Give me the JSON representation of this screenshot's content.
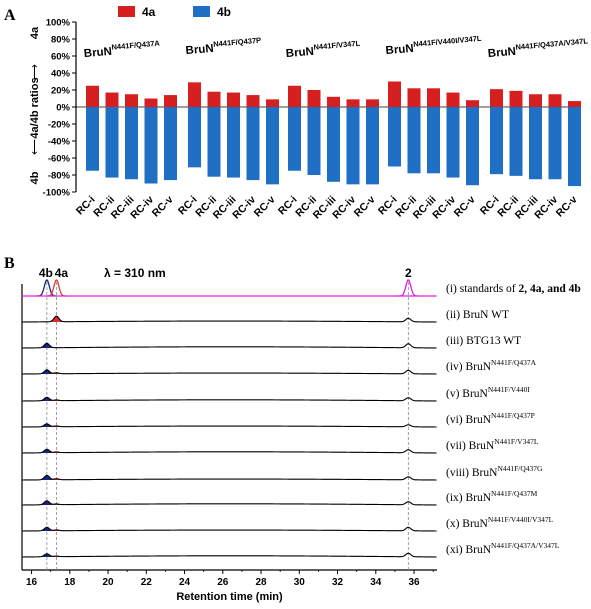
{
  "panel_a": {
    "label": "A",
    "legend": [
      {
        "name": "4a",
        "color": "#d61f1f"
      },
      {
        "name": "4b",
        "color": "#1f6fc5"
      }
    ],
    "y_axis_top_label": "4a",
    "y_axis_middle_label": "4a/4b ratios",
    "y_axis_bottom_label": "4b",
    "y_ticks": [
      "100%",
      "80%",
      "60%",
      "40%",
      "20%",
      "0%",
      "-20%",
      "-40%",
      "-60%",
      "-80%",
      "-100%"
    ]
  },
  "panel_b": {
    "label": "B",
    "wavelength_label": "λ = 310 nm",
    "peak_labels": [
      "4b",
      "4a",
      "2"
    ],
    "x_ticks": [
      "16",
      "18",
      "20",
      "22",
      "24",
      "26",
      "28",
      "30",
      "32",
      "34",
      "36"
    ],
    "xlabel": "Retention time (min)",
    "trace_labels": [
      {
        "prefix": "(i) standards of ",
        "suffix": "",
        "text": "2, 4a, and 4b"
      },
      {
        "prefix": "(ii) BruN WT",
        "suffix": ""
      },
      {
        "prefix": "(iii) BTG13 WT",
        "suffix": ""
      },
      {
        "prefix": "(iv) BruN",
        "suffix": "N441F/Q437A"
      },
      {
        "prefix": "(v) BruN",
        "suffix": "N441F/V440I"
      },
      {
        "prefix": "(vi) BruN",
        "suffix": "N441F/Q437P"
      },
      {
        "prefix": "(vii) BruN",
        "suffix": "N441F/V347L"
      },
      {
        "prefix": "(viii) BruN",
        "suffix": "N441F/Q437G"
      },
      {
        "prefix": "(ix) BruN",
        "suffix": "N441F/Q437M"
      },
      {
        "prefix": "(x) BruN",
        "suffix": "N441F/V440I/V347L"
      },
      {
        "prefix": "(xi) BruN",
        "suffix": "N441F/Q437A/V347L"
      }
    ]
  },
  "chart_data": [
    {
      "type": "bar",
      "title": "",
      "xlabel": "",
      "ylabel": "4a/4b ratios",
      "ylim": [
        -100,
        100
      ],
      "grid": false,
      "legend_position": "top-left",
      "groups": [
        {
          "name": "BruN",
          "sup": "N441F/Q437A",
          "categories": [
            "RC-i",
            "RC-ii",
            "RC-iii",
            "RC-iv",
            "RC-v"
          ],
          "series": [
            {
              "name": "4a",
              "values": [
                25,
                17,
                15,
                10,
                14
              ]
            },
            {
              "name": "4b",
              "values": [
                -75,
                -83,
                -85,
                -90,
                -86
              ]
            }
          ]
        },
        {
          "name": "BruN",
          "sup": "N441F/Q437P",
          "categories": [
            "RC-i",
            "RC-ii",
            "RC-iii",
            "RC-iv",
            "RC-v"
          ],
          "series": [
            {
              "name": "4a",
              "values": [
                29,
                18,
                17,
                14,
                9
              ]
            },
            {
              "name": "4b",
              "values": [
                -71,
                -82,
                -83,
                -86,
                -91
              ]
            }
          ]
        },
        {
          "name": "BruN",
          "sup": "N441F/V347L",
          "categories": [
            "RC-i",
            "RC-ii",
            "RC-iii",
            "RC-iv",
            "RC-v"
          ],
          "series": [
            {
              "name": "4a",
              "values": [
                25,
                20,
                12,
                9,
                9
              ]
            },
            {
              "name": "4b",
              "values": [
                -75,
                -80,
                -88,
                -91,
                -91
              ]
            }
          ]
        },
        {
          "name": "BruN",
          "sup": "N441F/V440I/V347L",
          "categories": [
            "RC-i",
            "RC-ii",
            "RC-iii",
            "RC-iv",
            "RC-v"
          ],
          "series": [
            {
              "name": "4a",
              "values": [
                30,
                22,
                22,
                17,
                8
              ]
            },
            {
              "name": "4b",
              "values": [
                -70,
                -78,
                -78,
                -83,
                -92
              ]
            }
          ]
        },
        {
          "name": "BruN",
          "sup": "N441F/Q437A/V347L",
          "categories": [
            "RC-i",
            "RC-ii",
            "RC-iii",
            "RC-iv",
            "RC-v"
          ],
          "series": [
            {
              "name": "4a",
              "values": [
                21,
                19,
                15,
                15,
                7
              ]
            },
            {
              "name": "4b",
              "values": [
                -79,
                -81,
                -85,
                -85,
                -93
              ]
            }
          ]
        }
      ]
    },
    {
      "type": "line",
      "title": "",
      "xlabel": "Retention time (min)",
      "ylabel": "",
      "xlim": [
        15.5,
        37.2
      ],
      "grid": false,
      "reference_lines_x": [
        16.8,
        17.3,
        35.7
      ],
      "peaks": [
        {
          "name": "4b",
          "x": 16.8
        },
        {
          "name": "4a",
          "x": 17.3
        },
        {
          "name": "2",
          "x": 35.7
        }
      ],
      "traces": [
        {
          "label": "(i)",
          "color": "#e020e0",
          "peaks": {
            "4b": 1.0,
            "4a": 1.0,
            "2": 1.0
          }
        },
        {
          "label": "(ii)",
          "color": "#000000",
          "peaks": {
            "4b": 0.0,
            "4a": 0.55,
            "2": 0.35
          }
        },
        {
          "label": "(iii)",
          "color": "#000000",
          "peaks": {
            "4b": 0.45,
            "4a": 0.0,
            "2": 0.4
          }
        },
        {
          "label": "(iv)",
          "color": "#000000",
          "peaks": {
            "4b": 0.4,
            "4a": 0.1,
            "2": 0.35
          }
        },
        {
          "label": "(v)",
          "color": "#000000",
          "peaks": {
            "4b": 0.35,
            "4a": 0.08,
            "2": 0.3
          }
        },
        {
          "label": "(vi)",
          "color": "#000000",
          "peaks": {
            "4b": 0.3,
            "4a": 0.08,
            "2": 0.2
          }
        },
        {
          "label": "(vii)",
          "color": "#000000",
          "peaks": {
            "4b": 0.35,
            "4a": 0.08,
            "2": 0.3
          }
        },
        {
          "label": "(viii)",
          "color": "#000000",
          "peaks": {
            "4b": 0.45,
            "4a": 0.1,
            "2": 0.3
          }
        },
        {
          "label": "(ix)",
          "color": "#000000",
          "peaks": {
            "4b": 0.4,
            "4a": 0.08,
            "2": 0.3
          }
        },
        {
          "label": "(x)",
          "color": "#000000",
          "peaks": {
            "4b": 0.35,
            "4a": 0.08,
            "2": 0.35
          }
        },
        {
          "label": "(xi)",
          "color": "#000000",
          "peaks": {
            "4b": 0.3,
            "4a": 0.06,
            "2": 0.35
          }
        }
      ]
    }
  ]
}
